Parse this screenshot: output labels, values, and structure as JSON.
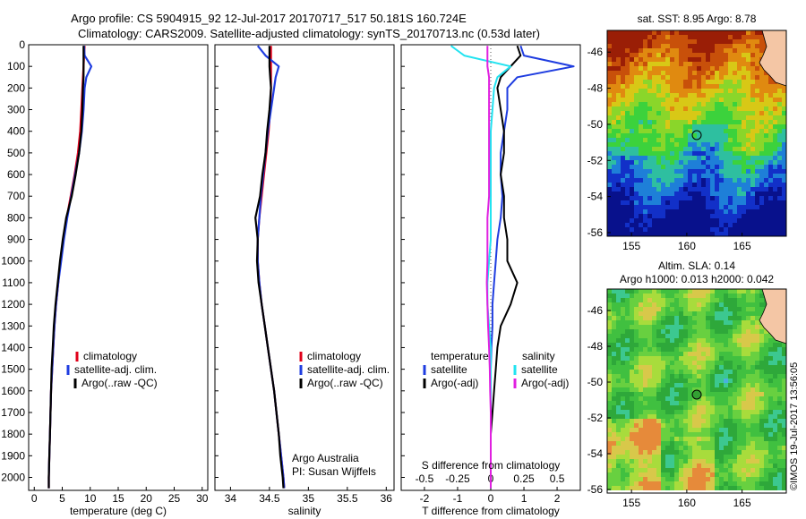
{
  "header": {
    "line1": "Argo profile: CS 5904915_92 12-Jul-2017 20170717_517 50.181S 160.724E",
    "line2": "Climatology: CARS2009. Satellite-adjusted climatology: synTS_20170713.nc (0.53d later)"
  },
  "credit": "Argo Australia",
  "pi": "PI: Susan Wijffels",
  "stamp": "©IMOS 19-Jul-2017 13:56:05",
  "colors": {
    "clim": "#e0001a",
    "sat": "#1f3de0",
    "argo": "#000000",
    "cyan": "#22e3f0",
    "magenta": "#e020e0"
  },
  "legend_profile": [
    "climatology",
    "satellite-adj. clim.",
    "Argo(..raw -QC)"
  ],
  "legend_diff": {
    "temp_title": "temperature",
    "sal_title": "salinity",
    "temp_items": [
      "satellite",
      "Argo(-adj)"
    ],
    "sal_items": [
      "satellite",
      "Argo(-adj)"
    ]
  },
  "maps": {
    "sst_title": "sat. SST: 8.95 Argo: 8.78",
    "sla_title1": "Altim. SLA: 0.14",
    "sla_title2": "Argo h1000: 0.013 h2000: 0.042",
    "lat_ticks": [
      "-46",
      "-48",
      "-50",
      "-52",
      "-54",
      "-56"
    ],
    "lon_ticks": [
      "155",
      "160",
      "165"
    ],
    "argo_position": {
      "lon": 160.724,
      "lat": -50.181
    }
  },
  "chart_data": [
    {
      "type": "line",
      "name": "temperature",
      "xlabel": "temperature (deg C)",
      "xlim": [
        -1,
        31
      ],
      "xticks": [
        "0",
        "5",
        "10",
        "15",
        "20",
        "25",
        "30"
      ],
      "yticks": [
        "0",
        "100",
        "200",
        "300",
        "400",
        "500",
        "600",
        "700",
        "800",
        "900",
        "1000",
        "1100",
        "1200",
        "1300",
        "1400",
        "1500",
        "1600",
        "1700",
        "1800",
        "1900",
        "2000"
      ],
      "ylim": [
        0,
        2060
      ],
      "depth": [
        5,
        50,
        100,
        150,
        200,
        300,
        400,
        500,
        600,
        700,
        800,
        900,
        1000,
        1100,
        1200,
        1300,
        1400,
        1500,
        1600,
        1700,
        1800,
        1900,
        2000,
        2050
      ],
      "series": [
        {
          "name": "climatology",
          "values": [
            9.0,
            8.9,
            8.8,
            8.7,
            8.6,
            8.4,
            8.2,
            7.8,
            7.2,
            6.5,
            5.8,
            5.2,
            4.7,
            4.3,
            3.9,
            3.6,
            3.4,
            3.2,
            3.0,
            2.9,
            2.8,
            2.7,
            2.6,
            2.6
          ]
        },
        {
          "name": "satellite-adj. clim.",
          "values": [
            8.9,
            9.0,
            10.2,
            9.3,
            9.0,
            8.8,
            8.5,
            8.0,
            7.3,
            6.6,
            5.9,
            5.3,
            4.8,
            4.3,
            3.9,
            3.6,
            3.4,
            3.2,
            3.0,
            2.9,
            2.8,
            2.7,
            2.6,
            2.6
          ]
        },
        {
          "name": "Argo(..raw -QC)",
          "values": [
            8.8,
            8.8,
            8.8,
            8.8,
            8.7,
            8.6,
            8.4,
            8.0,
            7.4,
            6.7,
            5.7,
            5.1,
            4.6,
            4.2,
            3.8,
            3.5,
            3.3,
            3.1,
            3.0,
            2.9,
            2.8,
            2.7,
            2.6,
            2.6
          ]
        }
      ]
    },
    {
      "type": "line",
      "name": "salinity",
      "xlabel": "salinity",
      "xlim": [
        33.8,
        36.1
      ],
      "xticks": [
        "34",
        "34.5",
        "35",
        "35.5",
        "36"
      ],
      "ylim": [
        0,
        2060
      ],
      "depth": [
        5,
        50,
        100,
        150,
        200,
        300,
        400,
        500,
        600,
        700,
        800,
        900,
        1000,
        1100,
        1200,
        1300,
        1400,
        1500,
        1600,
        1700,
        1800,
        1900,
        2000,
        2050
      ],
      "series": [
        {
          "name": "climatology",
          "values": [
            34.52,
            34.52,
            34.52,
            34.52,
            34.52,
            34.51,
            34.49,
            34.46,
            34.43,
            34.4,
            34.37,
            34.35,
            34.35,
            34.37,
            34.4,
            34.44,
            34.48,
            34.52,
            34.56,
            34.59,
            34.62,
            34.65,
            34.68,
            34.69
          ]
        },
        {
          "name": "satellite-adj. clim.",
          "values": [
            34.35,
            34.45,
            34.62,
            34.58,
            34.56,
            34.52,
            34.48,
            34.45,
            34.42,
            34.39,
            34.37,
            34.35,
            34.35,
            34.37,
            34.4,
            34.44,
            34.48,
            34.52,
            34.56,
            34.59,
            34.62,
            34.65,
            34.68,
            34.69
          ]
        },
        {
          "name": "Argo(..raw -QC)",
          "values": [
            34.5,
            34.5,
            34.5,
            34.51,
            34.52,
            34.5,
            34.47,
            34.45,
            34.41,
            34.38,
            34.32,
            34.35,
            34.34,
            34.36,
            34.4,
            34.44,
            34.48,
            34.52,
            34.56,
            34.59,
            34.62,
            34.64,
            34.67,
            34.68
          ]
        }
      ]
    },
    {
      "type": "line",
      "name": "difference from climatology",
      "xlabel": "T difference from climatology",
      "xlabel_top": "S difference from climatology",
      "xlim": [
        -2.7,
        2.7
      ],
      "xticks": [
        "-2",
        "-1",
        "0",
        "1",
        "2"
      ],
      "sticks": [
        "-0.5",
        "-0.25",
        "0",
        "0.25",
        "0.5"
      ],
      "ylim": [
        0,
        2060
      ],
      "depth": [
        5,
        50,
        100,
        150,
        200,
        300,
        400,
        500,
        600,
        700,
        800,
        900,
        1000,
        1100,
        1200,
        1300,
        1400,
        1500,
        1600,
        1700,
        1800,
        1900,
        2000,
        2050
      ],
      "series": [
        {
          "name": "temperature satellite",
          "values": [
            0.9,
            1.0,
            2.5,
            0.8,
            0.5,
            0.5,
            0.4,
            0.3,
            0.3,
            0.35,
            0.3,
            0.2,
            0.15,
            0.1,
            0.05,
            0.05,
            0.02,
            0.0,
            0.0,
            0.0,
            0.0,
            0.0,
            0.0,
            0.0
          ]
        },
        {
          "name": "temperature Argo(-adj)",
          "values": [
            0.8,
            0.9,
            0.6,
            0.3,
            0.2,
            0.3,
            0.4,
            0.4,
            0.3,
            0.4,
            0.4,
            0.5,
            0.5,
            0.8,
            0.6,
            0.3,
            0.2,
            0.15,
            0.1,
            0.05,
            0.0,
            0.0,
            0.0,
            0.0
          ]
        },
        {
          "name": "salinity satellite",
          "values": [
            -1.2,
            -0.8,
            0.6,
            0.2,
            0.1,
            0.05,
            0.0,
            0.0,
            0.0,
            0.0,
            0.0,
            0.0,
            -0.05,
            -0.1,
            -0.1,
            -0.05,
            0.0,
            0.0,
            0.0,
            0.0,
            0.0,
            0.0,
            0.0,
            0.0
          ]
        },
        {
          "name": "salinity Argo(-adj)",
          "values": [
            -0.1,
            -0.1,
            -0.1,
            -0.05,
            -0.05,
            -0.05,
            -0.05,
            -0.05,
            -0.05,
            -0.05,
            -0.1,
            -0.1,
            -0.1,
            -0.12,
            -0.1,
            -0.08,
            -0.05,
            -0.03,
            -0.02,
            0.0,
            0.0,
            0.0,
            0.0,
            0.0
          ]
        }
      ]
    }
  ]
}
